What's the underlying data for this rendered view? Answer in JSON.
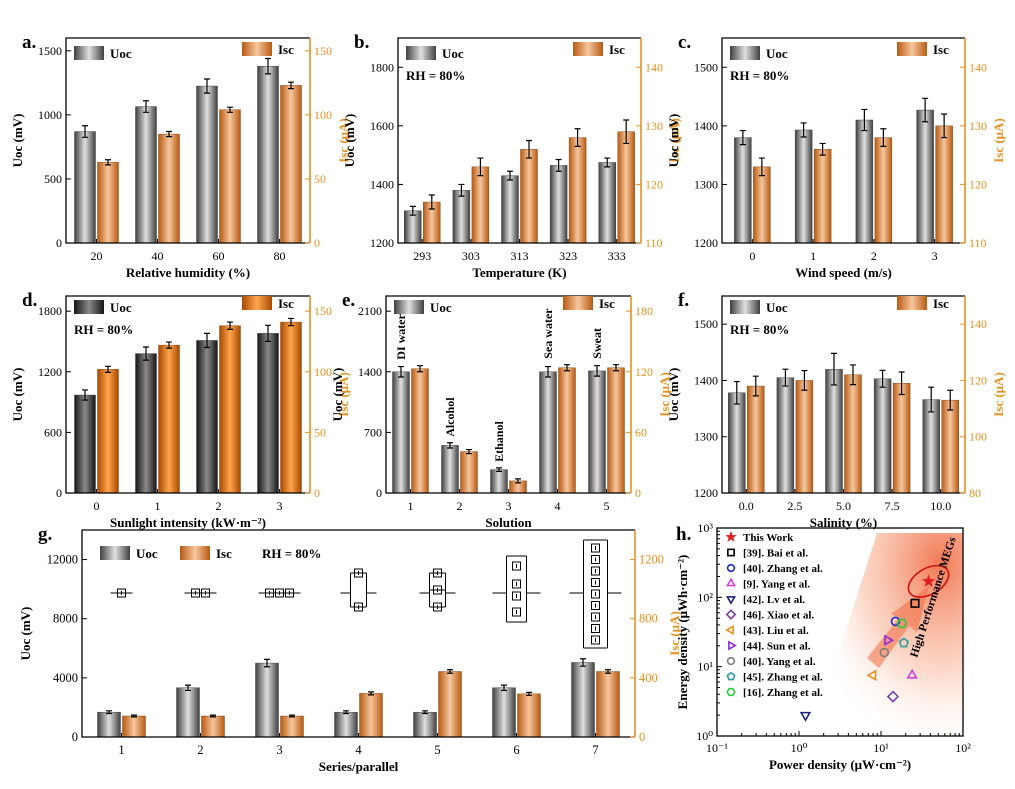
{
  "colors": {
    "uoc_dark": "#404040",
    "uoc_light": "#e0e0e0",
    "isc_dark": "#b85a12",
    "isc_light": "#f6c79e",
    "isc_axis": "#e8901e",
    "star": "#e02020",
    "arrow": "#f06a40"
  },
  "chart_data": [
    {
      "panel": "a",
      "type": "bar",
      "title": "a.",
      "annotation": "",
      "xlabel": "Relative humidity (%)",
      "ylabel": "Uoc (mV)",
      "y2label": "Isc (μA)",
      "categories": [
        "20",
        "40",
        "60",
        "80"
      ],
      "ylim": [
        0,
        1600
      ],
      "yticks": [
        "0",
        "500",
        "1000",
        "1500"
      ],
      "y2lim": [
        0,
        160
      ],
      "y2ticks": [
        "0",
        "50",
        "100",
        "150"
      ],
      "legend": [
        "Uoc",
        "Isc"
      ],
      "series": [
        {
          "name": "Uoc",
          "axis": "left",
          "values": [
            870,
            1065,
            1225,
            1380
          ],
          "errors": [
            45,
            45,
            55,
            60
          ]
        },
        {
          "name": "Isc",
          "axis": "right",
          "values": [
            63,
            85,
            104,
            123
          ],
          "errors": [
            2,
            2,
            2,
            2.5
          ]
        }
      ]
    },
    {
      "panel": "b",
      "type": "bar",
      "title": "b.",
      "annotation": "RH = 80%",
      "xlabel": "Temperature (K)",
      "ylabel": "Uoc (mV)",
      "y2label": "Isc (μA)",
      "categories": [
        "293",
        "303",
        "313",
        "323",
        "333"
      ],
      "ylim": [
        1200,
        1900
      ],
      "yticks": [
        "1200",
        "1400",
        "1600",
        "1800"
      ],
      "y2lim": [
        110,
        145
      ],
      "y2ticks": [
        "110",
        "120",
        "130",
        "140"
      ],
      "legend": [
        "Uoc",
        "Isc"
      ],
      "series": [
        {
          "name": "Uoc",
          "axis": "left",
          "values": [
            1310,
            1380,
            1430,
            1465,
            1475
          ],
          "errors": [
            15,
            20,
            15,
            20,
            15
          ]
        },
        {
          "name": "Isc",
          "axis": "right",
          "values": [
            117,
            123,
            126,
            128,
            129
          ],
          "errors": [
            1.2,
            1.5,
            1.5,
            1.5,
            2
          ]
        }
      ]
    },
    {
      "panel": "c",
      "type": "bar",
      "title": "c.",
      "annotation": "RH = 80%",
      "xlabel": "Wind speed (m/s)",
      "ylabel": "Uoc (mV)",
      "y2label": "Isc (μA)",
      "categories": [
        "0",
        "1",
        "2",
        "3"
      ],
      "ylim": [
        1200,
        1550
      ],
      "yticks": [
        "1200",
        "1300",
        "1400",
        "1500"
      ],
      "y2lim": [
        110,
        145
      ],
      "y2ticks": [
        "110",
        "120",
        "130",
        "140"
      ],
      "legend": [
        "Uoc",
        "Isc"
      ],
      "series": [
        {
          "name": "Uoc",
          "axis": "left",
          "values": [
            1380,
            1393,
            1410,
            1427
          ],
          "errors": [
            12,
            12,
            18,
            20
          ]
        },
        {
          "name": "Isc",
          "axis": "right",
          "values": [
            123,
            126,
            128,
            130
          ],
          "errors": [
            1.5,
            1,
            1.5,
            2
          ]
        }
      ]
    },
    {
      "panel": "d",
      "type": "bar",
      "title": "d.",
      "annotation": "RH = 80%",
      "xlabel": "Sunlight intensity (kW·m⁻²)",
      "ylabel": "Uoc (mV)",
      "y2label": "Isc (μA)",
      "categories": [
        "0",
        "1",
        "2",
        "3"
      ],
      "ylim": [
        0,
        1950
      ],
      "yticks": [
        "0",
        "600",
        "1200",
        "1800"
      ],
      "y2lim": [
        0,
        162.5
      ],
      "y2ticks": [
        "0",
        "50",
        "100",
        "150"
      ],
      "legend": [
        "Uoc",
        "Isc"
      ],
      "series": [
        {
          "name": "Uoc",
          "axis": "left",
          "values": [
            970,
            1380,
            1510,
            1580
          ],
          "errors": [
            50,
            65,
            70,
            80
          ]
        },
        {
          "name": "Isc",
          "axis": "right",
          "values": [
            102,
            122,
            138,
            141
          ],
          "errors": [
            2.5,
            2.5,
            3,
            3
          ]
        }
      ]
    },
    {
      "panel": "e",
      "type": "bar",
      "title": "e.",
      "annotation": "",
      "xlabel": "Solution",
      "ylabel": "Uoc (mV)",
      "y2label": "Isc (μA)",
      "categories": [
        "1",
        "2",
        "3",
        "4",
        "5"
      ],
      "ylim": [
        0,
        2275
      ],
      "yticks": [
        "0",
        "700",
        "1400",
        "2100"
      ],
      "y2lim": [
        0,
        195
      ],
      "y2ticks": [
        "0",
        "60",
        "120",
        "180"
      ],
      "legend": [
        "Uoc",
        "Isc"
      ],
      "bar_labels": [
        "DI water",
        "Alcohol",
        "Ethanol",
        "Sea water",
        "Sweat"
      ],
      "series": [
        {
          "name": "Uoc",
          "axis": "left",
          "values": [
            1400,
            550,
            270,
            1400,
            1410
          ],
          "errors": [
            60,
            30,
            20,
            60,
            60
          ]
        },
        {
          "name": "Isc",
          "axis": "right",
          "values": [
            123,
            41,
            12,
            124,
            124
          ],
          "errors": [
            3,
            2,
            2,
            3,
            3
          ]
        }
      ]
    },
    {
      "panel": "f",
      "type": "bar",
      "title": "f.",
      "annotation": "RH = 80%",
      "xlabel": "Salinity (%)",
      "ylabel": "Uoc (mV)",
      "y2label": "Isc (μA)",
      "categories": [
        "0.0",
        "2.5",
        "5.0",
        "7.5",
        "10.0"
      ],
      "ylim": [
        1200,
        1550
      ],
      "yticks": [
        "1200",
        "1300",
        "1400",
        "1500"
      ],
      "y2lim": [
        80,
        150
      ],
      "y2ticks": [
        "80",
        "100",
        "120",
        "140"
      ],
      "legend": [
        "Uoc",
        "Isc"
      ],
      "series": [
        {
          "name": "Uoc",
          "axis": "left",
          "values": [
            1378,
            1405,
            1420,
            1403,
            1366
          ],
          "errors": [
            20,
            15,
            28,
            15,
            22
          ]
        },
        {
          "name": "Isc",
          "axis": "right",
          "values": [
            118,
            120,
            122,
            119,
            113
          ],
          "errors": [
            3.5,
            3.5,
            3.5,
            4,
            3.5
          ]
        }
      ]
    },
    {
      "panel": "g",
      "type": "bar",
      "title": "g.",
      "annotation": "RH = 80%",
      "xlabel": "Series/parallel",
      "ylabel": "Uoc (mV)",
      "y2label": "Isc (μA)",
      "categories": [
        "1",
        "2",
        "3",
        "4",
        "5",
        "6",
        "7"
      ],
      "ylim": [
        0,
        14000
      ],
      "yticks": [
        "0",
        "4000",
        "8000",
        "12000"
      ],
      "y2lim": [
        0,
        1400
      ],
      "y2ticks": [
        "0",
        "400",
        "800",
        "1200"
      ],
      "legend": [
        "Uoc",
        "Isc"
      ],
      "circuits": [
        "1 device",
        "2 in series",
        "3 in series",
        "2 in parallel",
        "3 in parallel",
        "2 in series × 2 in parallel",
        "3 in series × 3 in parallel"
      ],
      "series": [
        {
          "name": "Uoc",
          "axis": "left",
          "values": [
            1680,
            3330,
            5000,
            1680,
            1680,
            3330,
            5040
          ],
          "errors": [
            90,
            180,
            250,
            90,
            90,
            180,
            250
          ]
        },
        {
          "name": "Isc",
          "axis": "right",
          "values": [
            142,
            142,
            142,
            295,
            443,
            292,
            443
          ],
          "errors": [
            6,
            6,
            6,
            10,
            12,
            10,
            12
          ]
        }
      ]
    },
    {
      "panel": "h",
      "type": "scatter",
      "title": "h.",
      "xlabel": "Power density (μW·cm⁻²)",
      "ylabel": "Energy density (μWh·cm⁻²)",
      "xscale": "log",
      "yscale": "log",
      "xlim": [
        0.1,
        100
      ],
      "ylim": [
        1,
        1000
      ],
      "xticks": [
        "10⁻¹",
        "10⁰",
        "10¹",
        "10²"
      ],
      "yticks": [
        "10⁰",
        "10¹",
        "10²",
        "10³"
      ],
      "region_label": "High Performance MEGs",
      "series": [
        {
          "name": "This Work",
          "marker": "star",
          "color": "#e02020",
          "x": 38,
          "y": 170
        },
        {
          "name": "[39]. Bai et al.",
          "marker": "square",
          "color": "#000000",
          "x": 26,
          "y": 82
        },
        {
          "name": "[40]. Zhang et al.",
          "marker": "circle",
          "color": "#1a2ed0",
          "x": 15,
          "y": 45
        },
        {
          "name": "[9]. Yang et al.",
          "marker": "triangle-up",
          "color": "#d840d8",
          "x": 24,
          "y": 7.5
        },
        {
          "name": "[42]. Lv et al.",
          "marker": "triangle-down",
          "color": "#1a237e",
          "x": 1.2,
          "y": 2.0
        },
        {
          "name": "[46]. Xiao et al.",
          "marker": "diamond",
          "color": "#7b3fa0",
          "x": 14,
          "y": 3.7
        },
        {
          "name": "[43]. Liu et al.",
          "marker": "triangle-left",
          "color": "#e8901e",
          "x": 8,
          "y": 7.5
        },
        {
          "name": "[44]. Sun et al.",
          "marker": "triangle-right",
          "color": "#8a2be2",
          "x": 12,
          "y": 24
        },
        {
          "name": "[40]. Yang et al.",
          "marker": "circle",
          "color": "#808080",
          "x": 11,
          "y": 16
        },
        {
          "name": "[45]. Zhang et al.",
          "marker": "pentagon",
          "color": "#2a9d9d",
          "x": 19,
          "y": 22
        },
        {
          "name": "[16]. Zhang et al.",
          "marker": "hexagon",
          "color": "#2ecc40",
          "x": 18,
          "y": 42
        }
      ]
    }
  ]
}
